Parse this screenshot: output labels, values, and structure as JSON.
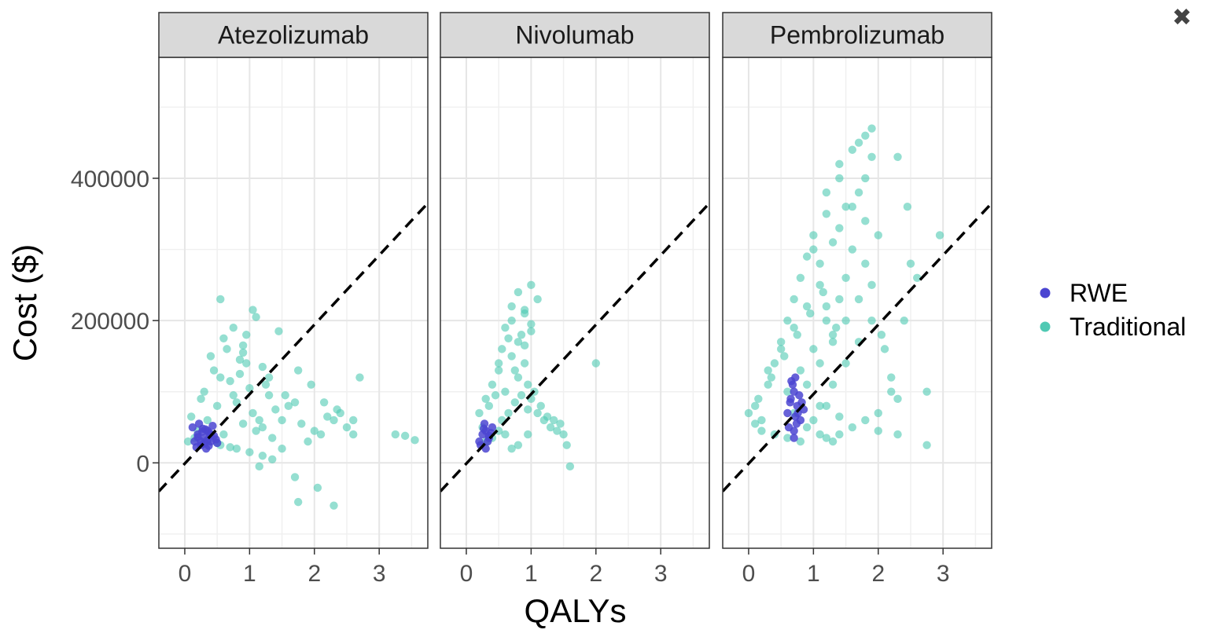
{
  "window": {
    "close_glyph": "✖",
    "close_icon": "close-icon"
  },
  "chart_data": {
    "type": "scatter",
    "xlabel": "QALYs",
    "ylabel": "Cost ($)",
    "xlim": [
      -0.4,
      3.75
    ],
    "ylim": [
      -120000,
      570000
    ],
    "x_ticks": [
      0,
      1,
      2,
      3
    ],
    "y_ticks": [
      0,
      200000,
      400000
    ],
    "y_tick_labels": [
      "0",
      "200000",
      "400000"
    ],
    "grid": true,
    "legend_position": "right",
    "reference_line": {
      "style": "dashed",
      "color": "#000000",
      "x": [
        -0.4,
        3.75
      ],
      "y": [
        -40000,
        365000
      ]
    },
    "series": [
      {
        "name": "RWE",
        "color": "#4b45d1"
      },
      {
        "name": "Traditional",
        "color": "#4fc9b3"
      }
    ],
    "panels": [
      {
        "title": "Atezolizumab",
        "series": [
          {
            "name": "Traditional",
            "x": [
              0.2,
              0.35,
              0.5,
              0.6,
              0.75,
              0.9,
              1.05,
              1.2,
              1.35,
              0.1,
              0.3,
              0.55,
              0.8,
              1.0,
              1.15,
              1.4,
              0.05,
              0.25,
              0.45,
              0.7,
              0.95,
              1.1,
              1.3,
              0.4,
              0.65,
              0.85,
              1.25,
              1.5,
              0.6,
              0.9,
              1.2,
              1.6,
              1.8,
              2.0,
              2.2,
              2.4,
              1.7,
              1.9,
              2.1,
              2.3,
              2.5,
              0.55,
              0.75,
              1.1,
              1.45,
              0.9,
              1.05,
              1.3,
              1.55,
              1.75,
              1.95,
              2.15,
              2.35,
              2.6,
              2.7,
              3.25,
              3.4,
              3.55,
              1.7,
              1.75,
              2.3,
              2.05,
              0.55,
              0.8,
              1.0,
              1.2,
              1.5,
              2.6,
              0.15,
              0.35,
              0.5,
              0.7,
              1.15,
              1.35,
              0.85,
              0.95
            ],
            "y": [
              45000,
              60000,
              80000,
              40000,
              95000,
              55000,
              70000,
              50000,
              35000,
              65000,
              100000,
              120000,
              85000,
              105000,
              60000,
              75000,
              30000,
              90000,
              130000,
              115000,
              140000,
              45000,
              95000,
              150000,
              160000,
              125000,
              110000,
              60000,
              175000,
              155000,
              135000,
              80000,
              55000,
              45000,
              65000,
              70000,
              85000,
              30000,
              40000,
              60000,
              50000,
              230000,
              190000,
              205000,
              185000,
              165000,
              215000,
              120000,
              95000,
              130000,
              110000,
              85000,
              75000,
              40000,
              120000,
              40000,
              38000,
              32000,
              -20000,
              -55000,
              -60000,
              -35000,
              25000,
              20000,
              15000,
              10000,
              20000,
              60000,
              35000,
              30000,
              28000,
              22000,
              -5000,
              5000,
              145000,
              180000
            ]
          },
          {
            "name": "RWE",
            "x": [
              0.15,
              0.2,
              0.25,
              0.3,
              0.35,
              0.4,
              0.45,
              0.5,
              0.12,
              0.18,
              0.22,
              0.28,
              0.33,
              0.38,
              0.43,
              0.48,
              0.2,
              0.25,
              0.3,
              0.35,
              0.4,
              0.27,
              0.32,
              0.37
            ],
            "y": [
              30000,
              40000,
              25000,
              35000,
              45000,
              30000,
              38000,
              28000,
              50000,
              22000,
              55000,
              48000,
              20000,
              42000,
              52000,
              33000,
              36000,
              30000,
              27000,
              32000,
              40000,
              44000,
              47000,
              24000
            ]
          }
        ]
      },
      {
        "title": "Nivolumab",
        "series": [
          {
            "name": "Traditional",
            "x": [
              0.2,
              0.3,
              0.4,
              0.5,
              0.6,
              0.7,
              0.8,
              0.9,
              1.0,
              1.1,
              1.2,
              1.3,
              0.25,
              0.35,
              0.45,
              0.55,
              0.65,
              0.75,
              0.85,
              0.95,
              1.05,
              1.15,
              1.25,
              1.4,
              0.5,
              0.6,
              0.7,
              0.8,
              0.9,
              1.0,
              0.55,
              0.65,
              0.75,
              0.85,
              0.95,
              0.7,
              0.8,
              0.9,
              1.0,
              1.1,
              0.9,
              1.0,
              0.95,
              1.6,
              2.0,
              1.55,
              0.3,
              0.4,
              0.5,
              0.6,
              0.7,
              0.8,
              1.5,
              1.35,
              1.45
            ],
            "y": [
              70000,
              90000,
              110000,
              130000,
              100000,
              150000,
              120000,
              140000,
              90000,
              70000,
              60000,
              50000,
              50000,
              80000,
              95000,
              160000,
              175000,
              130000,
              180000,
              110000,
              100000,
              80000,
              65000,
              45000,
              140000,
              190000,
              200000,
              170000,
              165000,
              195000,
              60000,
              70000,
              85000,
              95000,
              75000,
              220000,
              240000,
              215000,
              250000,
              230000,
              210000,
              185000,
              40000,
              -5000,
              140000,
              25000,
              30000,
              35000,
              45000,
              40000,
              20000,
              25000,
              40000,
              60000,
              55000
            ]
          },
          {
            "name": "RWE",
            "x": [
              0.2,
              0.25,
              0.3,
              0.35,
              0.4,
              0.22,
              0.28,
              0.33,
              0.38,
              0.3,
              0.27,
              0.35
            ],
            "y": [
              30000,
              40000,
              45000,
              35000,
              50000,
              25000,
              55000,
              30000,
              42000,
              20000,
              48000,
              38000
            ]
          }
        ]
      },
      {
        "title": "Pembrolizumab",
        "series": [
          {
            "name": "Traditional",
            "x": [
              0.0,
              0.1,
              0.2,
              0.3,
              0.4,
              0.5,
              0.6,
              0.7,
              0.8,
              0.9,
              1.0,
              1.1,
              1.2,
              1.3,
              0.15,
              0.35,
              0.55,
              0.75,
              0.95,
              1.15,
              1.35,
              0.3,
              0.5,
              0.7,
              0.9,
              1.1,
              1.3,
              1.5,
              0.6,
              0.8,
              1.0,
              1.2,
              1.4,
              0.7,
              0.9,
              1.1,
              1.3,
              1.5,
              1.7,
              0.9,
              1.1,
              1.3,
              1.5,
              1.7,
              1.0,
              1.2,
              1.4,
              1.6,
              1.8,
              1.9,
              1.2,
              1.4,
              1.6,
              1.8,
              2.0,
              1.4,
              1.6,
              1.8,
              1.9,
              1.7,
              1.8,
              1.9,
              2.3,
              1.5,
              1.7,
              2.05,
              2.1,
              2.2,
              2.3,
              2.45,
              2.5,
              2.6,
              2.75,
              2.4,
              2.2,
              2.0,
              1.8,
              1.6,
              1.4,
              1.2,
              2.0,
              2.3,
              1.9,
              2.75,
              2.95,
              0.1,
              0.2,
              0.4,
              0.6,
              0.8,
              1.0,
              1.2,
              1.4,
              1.1,
              1.3
            ],
            "y": [
              70000,
              80000,
              60000,
              110000,
              140000,
              170000,
              200000,
              230000,
              260000,
              290000,
              300000,
              250000,
              220000,
              180000,
              90000,
              120000,
              150000,
              180000,
              210000,
              240000,
              190000,
              130000,
              160000,
              190000,
              220000,
              280000,
              310000,
              260000,
              100000,
              130000,
              160000,
              200000,
              230000,
              70000,
              110000,
              140000,
              170000,
              200000,
              230000,
              50000,
              80000,
              110000,
              140000,
              170000,
              320000,
              350000,
              330000,
              300000,
              280000,
              250000,
              380000,
              400000,
              360000,
              340000,
              320000,
              420000,
              440000,
              400000,
              430000,
              450000,
              460000,
              470000,
              430000,
              360000,
              380000,
              180000,
              160000,
              100000,
              90000,
              360000,
              280000,
              260000,
              100000,
              200000,
              120000,
              70000,
              60000,
              50000,
              40000,
              35000,
              45000,
              40000,
              200000,
              25000,
              320000,
              55000,
              45000,
              40000,
              35000,
              30000,
              60000,
              80000,
              65000,
              40000,
              30000
            ]
          },
          {
            "name": "RWE",
            "x": [
              0.6,
              0.65,
              0.7,
              0.75,
              0.8,
              0.85,
              0.62,
              0.68,
              0.72,
              0.78,
              0.82,
              0.7,
              0.66,
              0.74,
              0.64,
              0.76,
              0.7,
              0.72
            ],
            "y": [
              70000,
              90000,
              100000,
              80000,
              60000,
              75000,
              50000,
              110000,
              65000,
              95000,
              85000,
              45000,
              115000,
              55000,
              85000,
              70000,
              35000,
              120000
            ]
          }
        ]
      }
    ]
  }
}
